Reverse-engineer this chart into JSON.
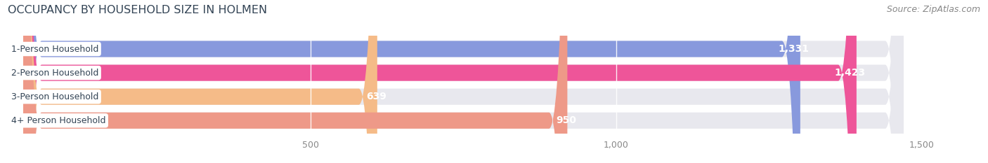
{
  "title": "OCCUPANCY BY HOUSEHOLD SIZE IN HOLMEN",
  "source": "Source: ZipAtlas.com",
  "categories": [
    "1-Person Household",
    "2-Person Household",
    "3-Person Household",
    "4+ Person Household"
  ],
  "values": [
    1331,
    1423,
    639,
    950
  ],
  "bar_colors": [
    "#8899dd",
    "#ee5599",
    "#f5bb88",
    "#ee9988"
  ],
  "bar_bg_color": "#e8e8ee",
  "xlim_max": 1600,
  "xticks": [
    500,
    1000,
    1500
  ],
  "figsize": [
    14.06,
    2.33
  ],
  "dpi": 100,
  "title_fontsize": 11.5,
  "source_fontsize": 9,
  "bar_label_fontsize": 10,
  "category_fontsize": 9,
  "tick_fontsize": 9,
  "title_color": "#334455",
  "source_color": "#888888",
  "background_color": "#ffffff",
  "bar_height": 0.68,
  "bar_spacing": 1.0
}
